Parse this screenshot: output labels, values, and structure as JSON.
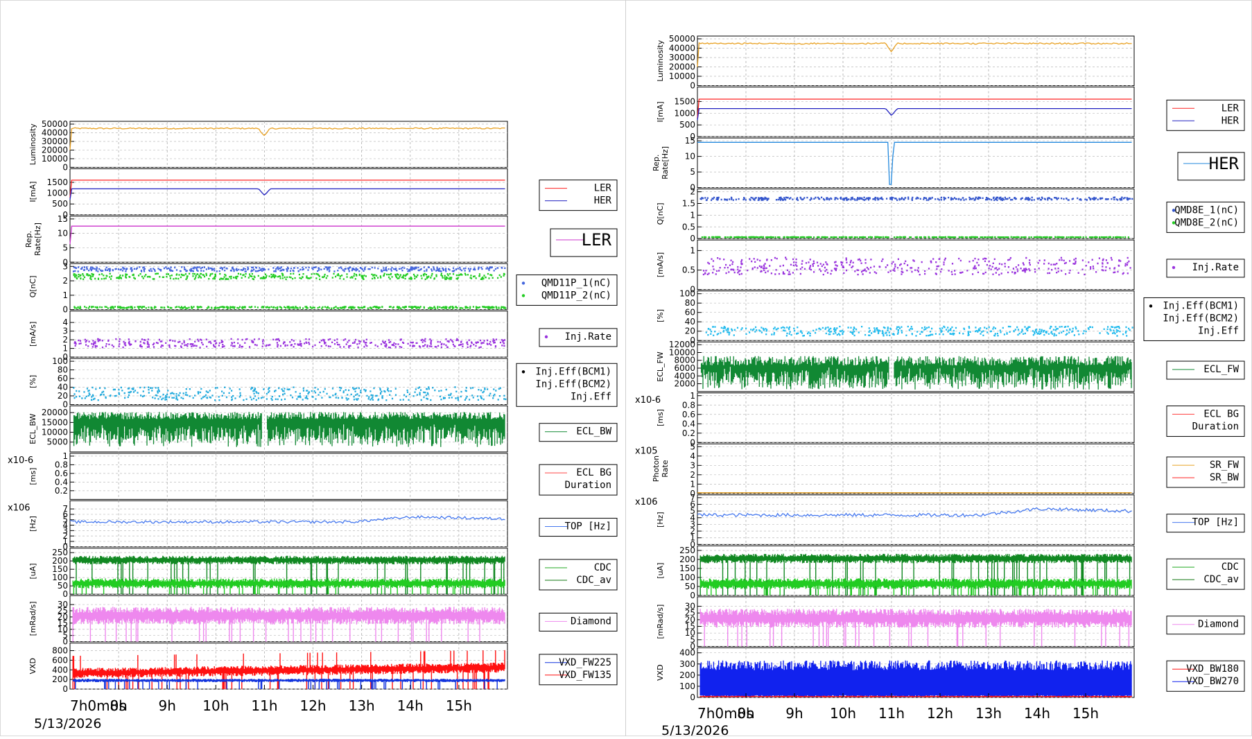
{
  "chart_data": [
    {
      "type": "line",
      "name_tag": "LER-monitor",
      "date": "5/13/2026",
      "x_ticks": [
        "7h0m0s",
        "8h",
        "9h",
        "10h",
        "11h",
        "12h",
        "13h",
        "14h",
        "15h"
      ],
      "hours_range": [
        7,
        16
      ],
      "panels": [
        {
          "ylabel": "Luminosity",
          "ylim": [
            0,
            50000
          ],
          "ticks": [
            0,
            10000,
            20000,
            30000,
            40000,
            50000
          ],
          "scale_label": "",
          "series": [
            {
              "name": "",
              "color": "#e8a020",
              "style": "line",
              "mode": "lumi",
              "base": 45000
            }
          ],
          "legend": []
        },
        {
          "ylabel": "I[mA]",
          "ylim": [
            0,
            2000
          ],
          "ticks": [
            0,
            500,
            1000,
            1500
          ],
          "scale_label": "",
          "series": [
            {
              "name": "LER",
              "color": "#ff2020",
              "style": "line",
              "mode": "flat",
              "base": 1600
            },
            {
              "name": "HER",
              "color": "#2020c0",
              "style": "line",
              "mode": "dip",
              "base": 1200
            }
          ],
          "legend": [
            {
              "label": "LER",
              "color": "#ff2020"
            },
            {
              "label": "HER",
              "color": "#2020c0"
            }
          ]
        },
        {
          "ylabel": "Rep. Rate[Hz]",
          "ylim": [
            0,
            15
          ],
          "ticks": [
            0,
            5,
            10,
            15
          ],
          "scale_label": "",
          "series": [
            {
              "name": "",
              "color": "#cc33cc",
              "style": "line",
              "mode": "flat",
              "base": 12.5
            }
          ],
          "legend": [
            {
              "label": "LER",
              "color": "#cc33cc",
              "big": true
            }
          ]
        },
        {
          "ylabel": "Q[nC]",
          "ylim": [
            0,
            3
          ],
          "ticks": [
            0,
            1,
            2,
            3
          ],
          "scale_label": "",
          "series": [
            {
              "name": "QMD11P_1(nC)",
              "color": "#4466dd",
              "style": "dots",
              "mode": "noisy",
              "base": 2.8,
              "noise": 0.15
            },
            {
              "name": "QMD11P_2(nC)",
              "color": "#22cc22",
              "style": "dots",
              "mode": "noisy",
              "base": 2.3,
              "noise": 0.2
            },
            {
              "name": "",
              "color": "#22cc22",
              "style": "dots",
              "mode": "noisy",
              "base": 0.15,
              "noise": 0.06
            }
          ],
          "legend": [
            {
              "label": "QMD11P_1(nC)",
              "color": "#4466dd",
              "dot": true
            },
            {
              "label": "QMD11P_2(nC)",
              "color": "#22cc22",
              "dot": true
            }
          ]
        },
        {
          "ylabel": "[mA/s]",
          "ylim": [
            0,
            5
          ],
          "ticks": [
            0,
            1,
            2,
            3,
            4
          ],
          "scale_label": "",
          "series": [
            {
              "name": "Inj.Rate",
              "color": "#9933dd",
              "style": "dots",
              "mode": "noisy",
              "base": 1.6,
              "noise": 0.5
            }
          ],
          "legend": [
            {
              "label": "Inj.Rate",
              "color": "#9933dd",
              "dot": true
            }
          ]
        },
        {
          "ylabel": "[%]",
          "ylim": [
            0,
            100
          ],
          "ticks": [
            0,
            20,
            40,
            60,
            80,
            100
          ],
          "scale_label": "",
          "series": [
            {
              "name": "Inj.Eff",
              "color": "#22aadd",
              "style": "dots",
              "mode": "noisy",
              "base": 25,
              "noise": 15
            }
          ],
          "legend": [
            {
              "label": "Inj.Eff(BCM1)",
              "color": "#000000",
              "dot": true
            },
            {
              "label": "Inj.Eff(BCM2)",
              "color": "#000000"
            },
            {
              "label": "Inj.Eff",
              "color": "#000000"
            }
          ]
        },
        {
          "ylabel": "ECL_BW",
          "ylim": [
            0,
            22000
          ],
          "ticks": [
            5000,
            10000,
            15000,
            20000
          ],
          "scale_label": "",
          "series": [
            {
              "name": "ECL_BW",
              "color": "#118833",
              "style": "spiky",
              "mode": "spiky",
              "base": 18500,
              "low": 2500
            }
          ],
          "legend": [
            {
              "label": "ECL_BW",
              "color": "#118833"
            }
          ]
        },
        {
          "ylabel": "[ms]",
          "ylim": [
            0,
            1
          ],
          "ticks": [
            0.2,
            0.4,
            0.6,
            0.8,
            1
          ],
          "scale_label": "x10-6",
          "series": [],
          "legend": [
            {
              "label": "ECL BG",
              "color": "#ff4444"
            },
            {
              "label": "Duration",
              "color": "#ffffff"
            }
          ]
        },
        {
          "ylabel": "[Hz]",
          "ylim": [
            0,
            8
          ],
          "ticks": [
            0,
            1,
            2,
            3,
            4,
            5,
            6,
            7
          ],
          "scale_label": "x106",
          "series": [
            {
              "name": "TOP [Hz]",
              "color": "#4477ee",
              "style": "line",
              "mode": "rise",
              "base": 4.6,
              "noise": 0.25
            }
          ],
          "legend": [
            {
              "label": "TOP [Hz]",
              "color": "#4477ee"
            }
          ]
        },
        {
          "ylabel": "[uA]",
          "ylim": [
            0,
            260
          ],
          "ticks": [
            0,
            50,
            100,
            150,
            200,
            250
          ],
          "scale_label": "",
          "series": [
            {
              "name": "CDC",
              "color": "#118822",
              "style": "band",
              "mode": "band",
              "base": 205,
              "noise": 22
            },
            {
              "name": "CDC_av",
              "color": "#22cc22",
              "style": "band",
              "mode": "band",
              "base": 65,
              "noise": 25
            }
          ],
          "legend": [
            {
              "label": "CDC",
              "color": "#22aa22"
            },
            {
              "label": "CDC_av",
              "color": "#117711"
            }
          ]
        },
        {
          "ylabel": "[mRad/s]",
          "ylim": [
            0,
            35
          ],
          "ticks": [
            0,
            5,
            10,
            15,
            20,
            25,
            30
          ],
          "scale_label": "",
          "series": [
            {
              "name": "Diamond",
              "color": "#ee88ee",
              "style": "band",
              "mode": "band",
              "base": 21,
              "noise": 6
            }
          ],
          "legend": [
            {
              "label": "Diamond",
              "color": "#ee88ee"
            }
          ]
        },
        {
          "ylabel": "VXD",
          "ylim": [
            0,
            900
          ],
          "ticks": [
            0,
            200,
            400,
            600,
            800
          ],
          "scale_label": "",
          "series": [
            {
              "name": "VXD_FW135",
              "color": "#ff1111",
              "style": "band",
              "mode": "growband",
              "base": 330,
              "noise": 90
            },
            {
              "name": "VXD_FW225",
              "color": "#1133dd",
              "style": "band",
              "mode": "band",
              "base": 180,
              "noise": 30
            }
          ],
          "legend": [
            {
              "label": "VXD_FW225",
              "color": "#1133dd"
            },
            {
              "label": "VXD_FW135",
              "color": "#ff1111"
            }
          ]
        }
      ]
    },
    {
      "type": "line",
      "name_tag": "HER-monitor",
      "date": "5/13/2026",
      "x_ticks": [
        "7h0m0s",
        "8h",
        "9h",
        "10h",
        "11h",
        "12h",
        "13h",
        "14h",
        "15h"
      ],
      "hours_range": [
        7,
        16
      ],
      "panels": [
        {
          "ylabel": "Luminosity",
          "ylim": [
            0,
            50000
          ],
          "ticks": [
            0,
            10000,
            20000,
            30000,
            40000,
            50000
          ],
          "scale_label": "",
          "series": [
            {
              "name": "",
              "color": "#e8a020",
              "style": "line",
              "mode": "lumi",
              "base": 45000
            }
          ],
          "legend": []
        },
        {
          "ylabel": "I[mA]",
          "ylim": [
            0,
            2000
          ],
          "ticks": [
            0,
            500,
            1000,
            1500
          ],
          "scale_label": "",
          "series": [
            {
              "name": "LER",
              "color": "#ff2020",
              "style": "line",
              "mode": "flat",
              "base": 1600
            },
            {
              "name": "HER",
              "color": "#2020c0",
              "style": "line",
              "mode": "dip",
              "base": 1200
            }
          ],
          "legend": [
            {
              "label": "LER",
              "color": "#ff2020"
            },
            {
              "label": "HER",
              "color": "#2020c0"
            }
          ]
        },
        {
          "ylabel": "Rep. Rate[Hz]",
          "ylim": [
            0,
            15
          ],
          "ticks": [
            0,
            5,
            10,
            15
          ],
          "scale_label": "",
          "series": [
            {
              "name": "",
              "color": "#2288dd",
              "style": "line",
              "mode": "repdip",
              "base": 14.5
            }
          ],
          "legend": [
            {
              "label": "HER",
              "color": "#2288dd",
              "big": true
            }
          ]
        },
        {
          "ylabel": "Q[nC]",
          "ylim": [
            0,
            2
          ],
          "ticks": [
            0,
            0.5,
            1,
            1.5,
            2
          ],
          "scale_label": "",
          "series": [
            {
              "name": "QMD8E_1(nC)",
              "color": "#3355cc",
              "style": "dots",
              "mode": "noisy",
              "base": 1.7,
              "noise": 0.06
            },
            {
              "name": "QMD8E_2(nC)",
              "color": "#22cc22",
              "style": "dots",
              "mode": "noisy",
              "base": 0.05,
              "noise": 0.02
            }
          ],
          "legend": [
            {
              "label": "QMD8E_1(nC)",
              "color": "#3355cc",
              "dot": true
            },
            {
              "label": "QMD8E_2(nC)",
              "color": "#22cc22",
              "dot": true
            }
          ]
        },
        {
          "ylabel": "[mA/s]",
          "ylim": [
            0,
            1.2
          ],
          "ticks": [
            0,
            0.5,
            1
          ],
          "scale_label": "",
          "series": [
            {
              "name": "Inj.Rate",
              "color": "#9933dd",
              "style": "dots",
              "mode": "noisy",
              "base": 0.6,
              "noise": 0.22
            }
          ],
          "legend": [
            {
              "label": "Inj.Rate",
              "color": "#9933dd",
              "dot": true
            }
          ]
        },
        {
          "ylabel": "[%]",
          "ylim": [
            0,
            100
          ],
          "ticks": [
            0,
            20,
            40,
            60,
            80,
            100
          ],
          "scale_label": "",
          "series": [
            {
              "name": "Inj.Eff",
              "color": "#22bbee",
              "style": "dots",
              "mode": "noisy",
              "base": 20,
              "noise": 10
            }
          ],
          "legend": [
            {
              "label": "Inj.Eff(BCM1)",
              "color": "#000000",
              "dot": true
            },
            {
              "label": "Inj.Eff(BCM2)",
              "color": "#000000"
            },
            {
              "label": "Inj.Eff",
              "color": "#000000"
            }
          ]
        },
        {
          "ylabel": "ECL_FW",
          "ylim": [
            0,
            12000
          ],
          "ticks": [
            2000,
            4000,
            6000,
            8000,
            10000,
            12000
          ],
          "scale_label": "",
          "series": [
            {
              "name": "ECL_FW",
              "color": "#118833",
              "style": "spiky",
              "mode": "spiky2",
              "base": 7000,
              "low": 500
            }
          ],
          "legend": [
            {
              "label": "ECL_FW",
              "color": "#118833"
            }
          ]
        },
        {
          "ylabel": "[ms]",
          "ylim": [
            0,
            1
          ],
          "ticks": [
            0,
            0.2,
            0.4,
            0.6,
            0.8,
            1
          ],
          "scale_label": "x10-6",
          "series": [],
          "legend": [
            {
              "label": "ECL BG",
              "color": "#ff4444"
            },
            {
              "label": "Duration",
              "color": "#ffffff"
            }
          ]
        },
        {
          "ylabel": "Photon Rate",
          "ylim": [
            0,
            5
          ],
          "ticks": [
            0,
            1,
            2,
            3,
            4,
            5
          ],
          "scale_label": "x105",
          "series": [
            {
              "name": "SR_FW",
              "color": "#e8a020",
              "style": "line",
              "mode": "flat",
              "base": 0.02
            }
          ],
          "legend": [
            {
              "label": "SR_FW",
              "color": "#e8a020"
            },
            {
              "label": "SR_BW",
              "color": "#ff2020"
            }
          ]
        },
        {
          "ylabel": "[Hz]",
          "ylim": [
            0,
            7
          ],
          "ticks": [
            0,
            1,
            2,
            3,
            4,
            5,
            6,
            7
          ],
          "scale_label": "x106",
          "series": [
            {
              "name": "TOP [Hz]",
              "color": "#4477ee",
              "style": "line",
              "mode": "rise",
              "base": 4.4,
              "noise": 0.25
            }
          ],
          "legend": [
            {
              "label": "TOP [Hz]",
              "color": "#4477ee"
            }
          ]
        },
        {
          "ylabel": "[uA]",
          "ylim": [
            0,
            260
          ],
          "ticks": [
            0,
            50,
            100,
            150,
            200,
            250
          ],
          "scale_label": "",
          "series": [
            {
              "name": "CDC",
              "color": "#118822",
              "style": "band",
              "mode": "band",
              "base": 205,
              "noise": 22
            },
            {
              "name": "CDC_av",
              "color": "#22cc22",
              "style": "band",
              "mode": "band",
              "base": 65,
              "noise": 25
            }
          ],
          "legend": [
            {
              "label": "CDC",
              "color": "#22aa22"
            },
            {
              "label": "CDC_av",
              "color": "#117711"
            }
          ]
        },
        {
          "ylabel": "[mRad/s]",
          "ylim": [
            0,
            35
          ],
          "ticks": [
            0,
            5,
            10,
            15,
            20,
            25,
            30
          ],
          "scale_label": "",
          "series": [
            {
              "name": "Diamond",
              "color": "#ee88ee",
              "style": "band",
              "mode": "band",
              "base": 21,
              "noise": 6
            }
          ],
          "legend": [
            {
              "label": "Diamond",
              "color": "#ee88ee"
            }
          ]
        },
        {
          "ylabel": "VXD",
          "ylim": [
            0,
            420
          ],
          "ticks": [
            0,
            100,
            200,
            300,
            400
          ],
          "scale_label": "",
          "series": [
            {
              "name": "VXD_BW270",
              "color": "#1122ee",
              "style": "band",
              "mode": "tallband",
              "base": 200,
              "noise": 110
            },
            {
              "name": "VXD_BW180",
              "color": "#ff1111",
              "style": "band",
              "mode": "band",
              "base": 8,
              "noise": 6
            }
          ],
          "legend": [
            {
              "label": "VXD_BW180",
              "color": "#ff1111"
            },
            {
              "label": "VXD_BW270",
              "color": "#1122ee"
            }
          ]
        }
      ]
    }
  ]
}
